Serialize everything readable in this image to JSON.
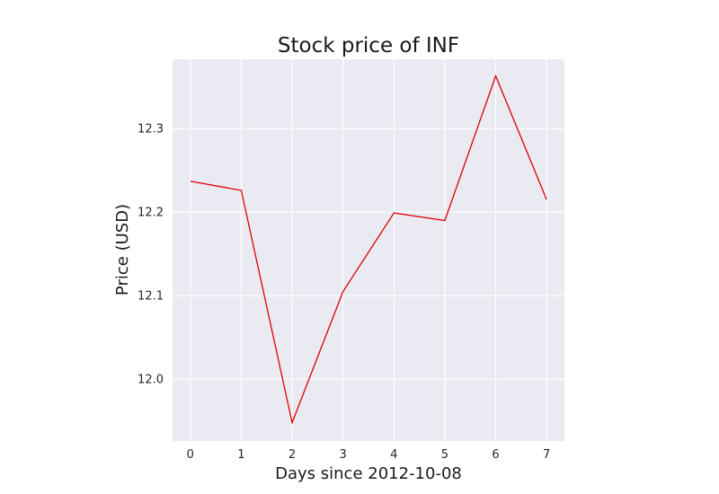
{
  "chart_data": {
    "type": "line",
    "title": "Stock price of INF",
    "xlabel": "Days since 2012-10-08",
    "ylabel": "Price (USD)",
    "x": [
      0,
      1,
      2,
      3,
      4,
      5,
      6,
      7
    ],
    "series": [
      {
        "values": [
          12.237,
          12.226,
          11.948,
          12.105,
          12.199,
          12.19,
          12.363,
          12.215
        ],
        "color": "#e00000"
      }
    ],
    "xlim": [
      -0.35,
      7.35
    ],
    "ylim": [
      11.926,
      12.383
    ],
    "x_ticks": [
      0,
      1,
      2,
      3,
      4,
      5,
      6,
      7
    ],
    "x_tick_labels": [
      "0",
      "1",
      "2",
      "3",
      "4",
      "5",
      "6",
      "7"
    ],
    "y_ticks": [
      12.0,
      12.1,
      12.2,
      12.3
    ],
    "y_tick_labels": [
      "12.0",
      "12.1",
      "12.2",
      "12.3"
    ],
    "grid": true,
    "legend": "none",
    "background_color": "#eaeaf2",
    "grid_color": "#ffffff"
  }
}
